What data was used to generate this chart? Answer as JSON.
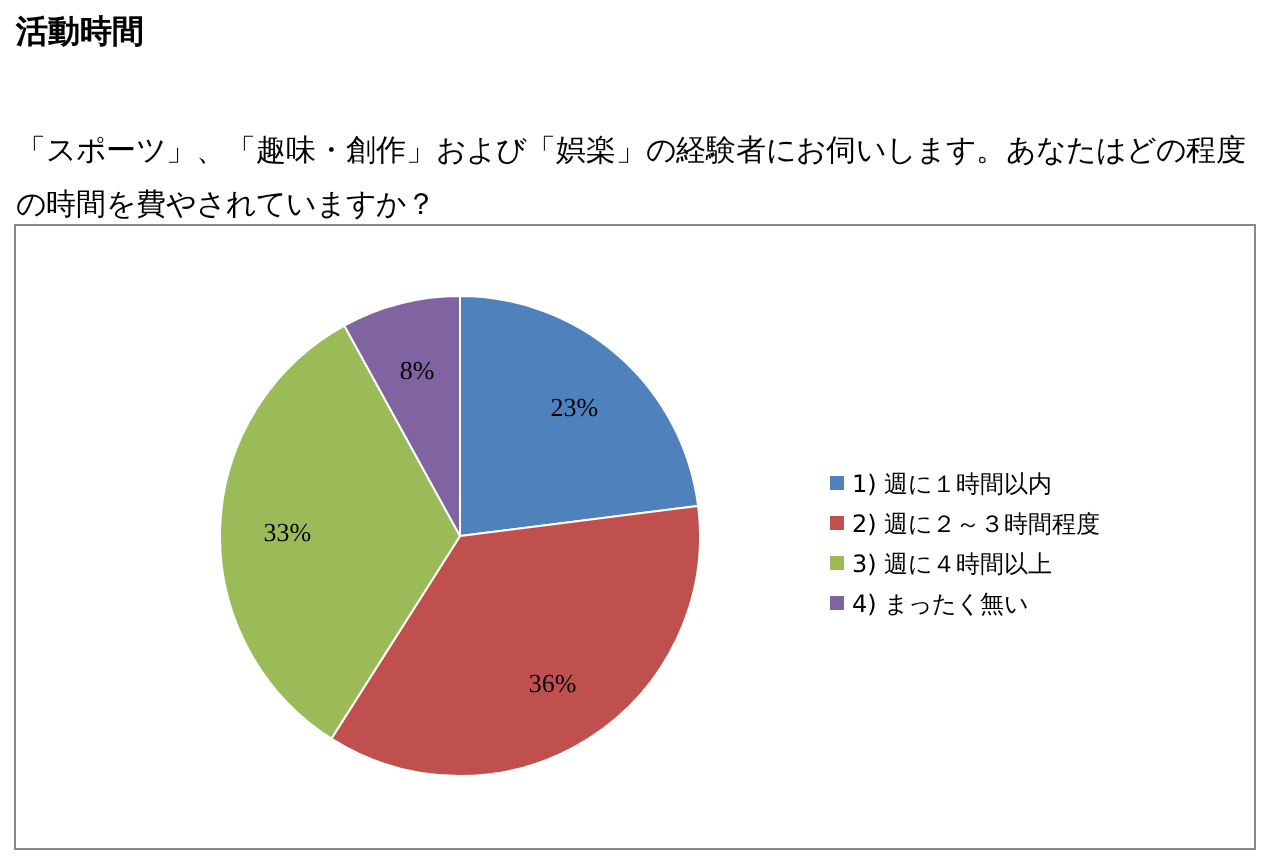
{
  "chart_data": {
    "type": "pie",
    "title": "活動時間",
    "subtitle": "「スポーツ」、「趣味・創作」および「娯楽」の経験者にお伺いします。あなたはどの程度の時間を費やされていますか？",
    "categories": [
      "1) 週に１時間以内",
      "2) 週に２～３時間程度",
      "3) 週に４時間以上",
      "4) まったく無い"
    ],
    "values": [
      23,
      36,
      33,
      8
    ],
    "value_labels": [
      "23%",
      "36%",
      "33%",
      "8%"
    ],
    "colors": [
      "#4f81bd",
      "#c0504d",
      "#9bbb59",
      "#8064a2"
    ],
    "legend": "right"
  }
}
